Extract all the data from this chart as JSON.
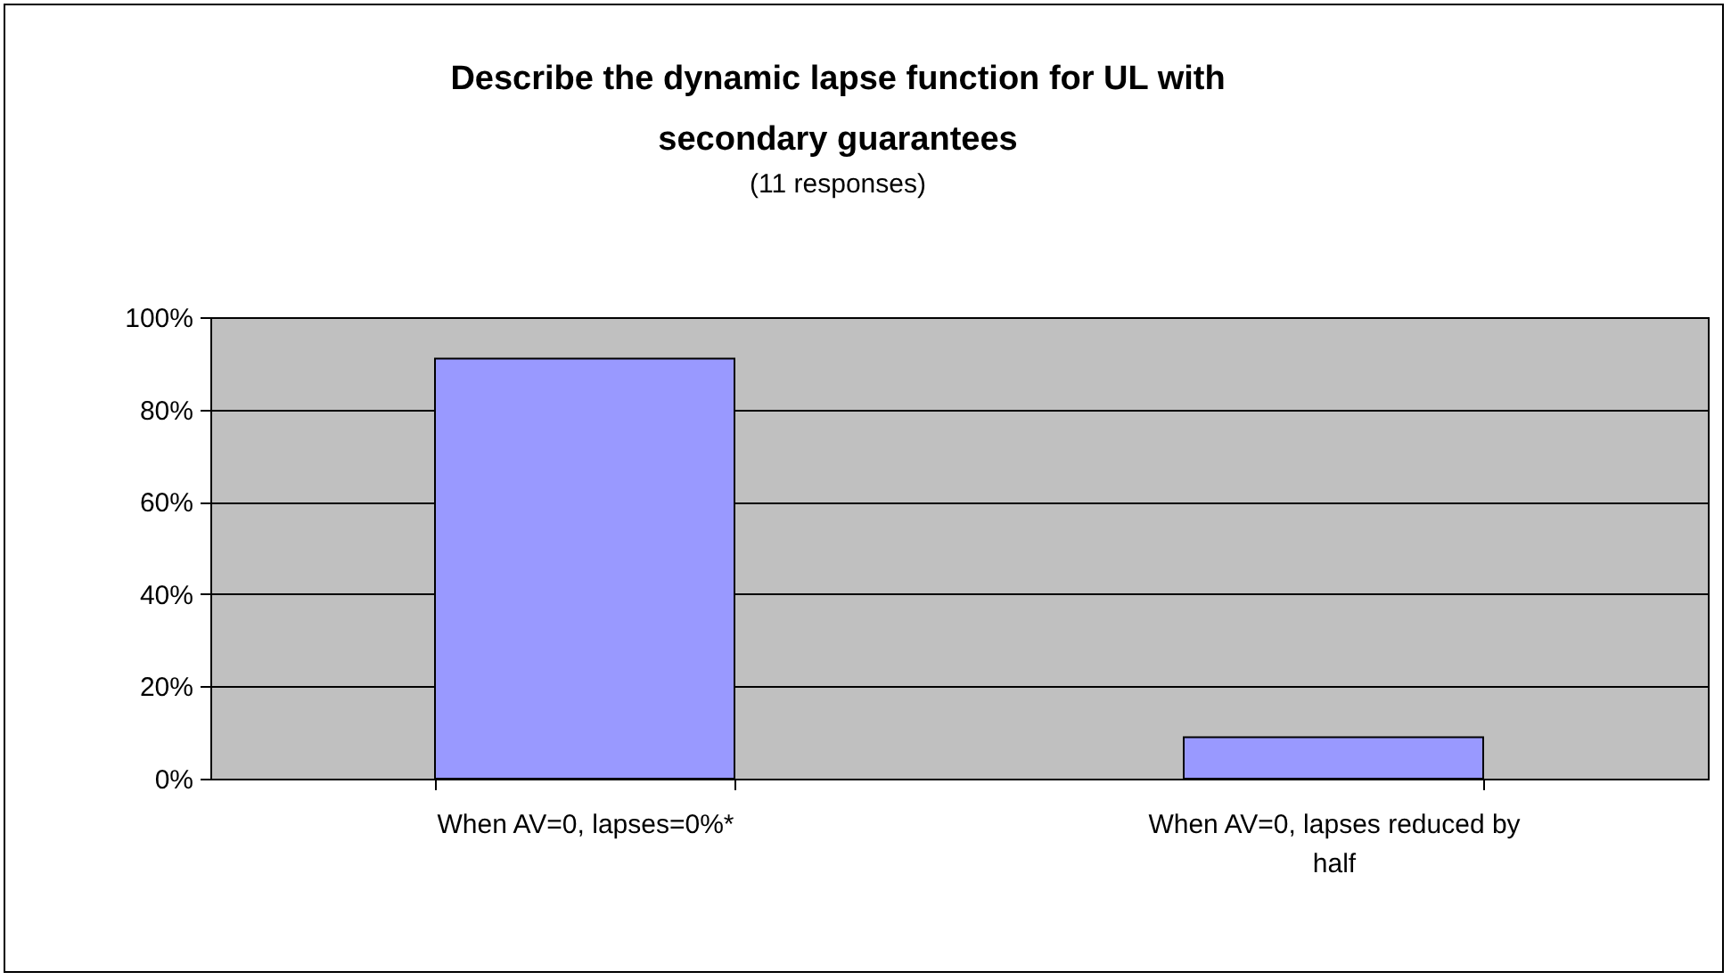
{
  "chart_data": {
    "type": "bar",
    "title": "Describe the dynamic lapse function for  UL with secondary guarantees",
    "subtitle": "(11 responses)",
    "categories": [
      "When AV=0, lapses=0%*",
      "When AV=0, lapses reduced by half"
    ],
    "values": [
      91,
      9
    ],
    "color": "#9999ff",
    "ylim": [
      0,
      100
    ],
    "yticks": [
      {
        "value": 0,
        "label": "0%"
      },
      {
        "value": 20,
        "label": "20%"
      },
      {
        "value": 40,
        "label": "40%"
      },
      {
        "value": 60,
        "label": "60%"
      },
      {
        "value": 80,
        "label": "80%"
      },
      {
        "value": 100,
        "label": "100%"
      }
    ],
    "grid": "y"
  }
}
